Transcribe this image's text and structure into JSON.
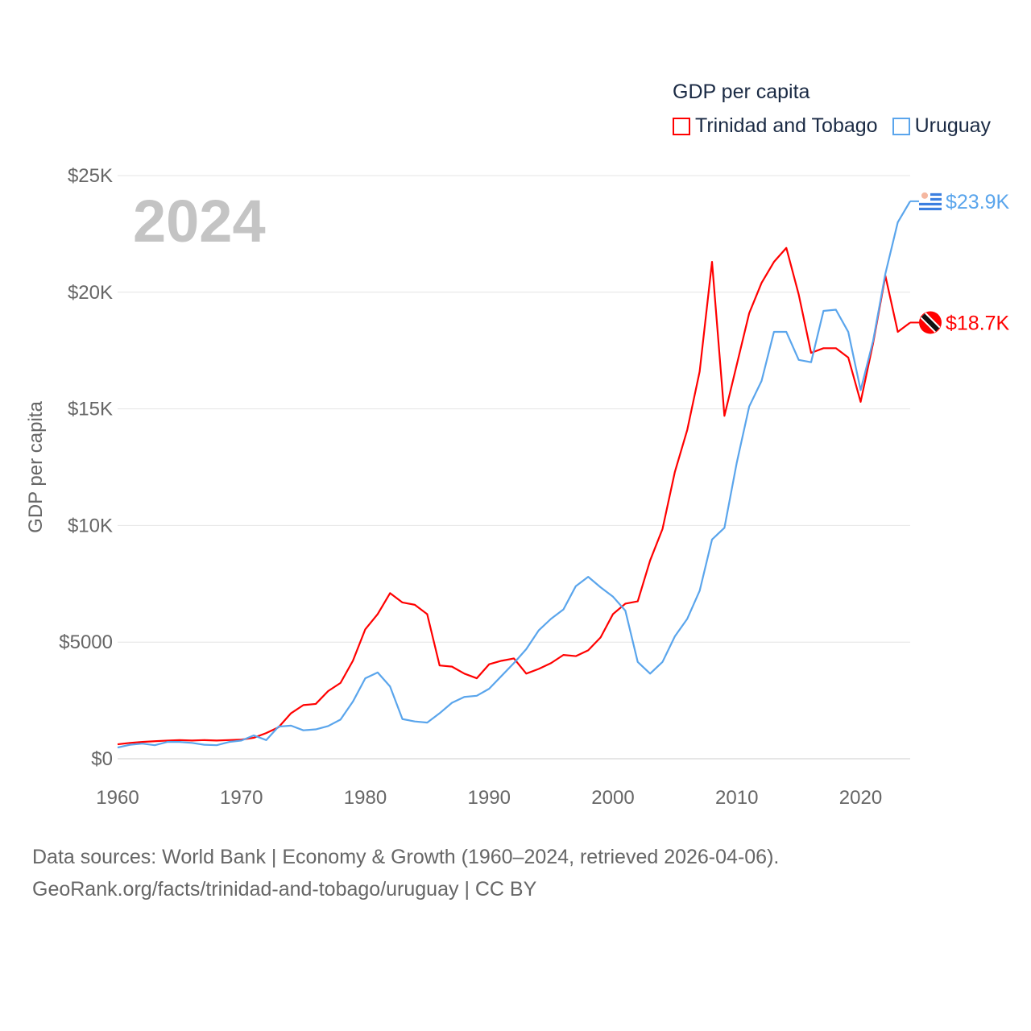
{
  "chart_data": {
    "type": "line",
    "title": "GDP per capita",
    "ylabel": "GDP per capita",
    "xlabel": "",
    "year_label": "2024",
    "xlim": [
      1960,
      2024
    ],
    "ylim": [
      0,
      25000
    ],
    "x_ticks": [
      "1960",
      "1970",
      "1980",
      "1990",
      "2000",
      "2010",
      "2020"
    ],
    "y_ticks": [
      "$0",
      "$5000",
      "$10K",
      "$15K",
      "$20K",
      "$25K"
    ],
    "grid": true,
    "legend_placement": "top-right",
    "x": [
      1960,
      1961,
      1962,
      1963,
      1964,
      1965,
      1966,
      1967,
      1968,
      1969,
      1970,
      1971,
      1972,
      1973,
      1974,
      1975,
      1976,
      1977,
      1978,
      1979,
      1980,
      1981,
      1982,
      1983,
      1984,
      1985,
      1986,
      1987,
      1988,
      1989,
      1990,
      1991,
      1992,
      1993,
      1994,
      1995,
      1996,
      1997,
      1998,
      1999,
      2000,
      2001,
      2002,
      2003,
      2004,
      2005,
      2006,
      2007,
      2008,
      2009,
      2010,
      2011,
      2012,
      2013,
      2014,
      2015,
      2016,
      2017,
      2018,
      2019,
      2020,
      2021,
      2022,
      2023,
      2024
    ],
    "series": [
      {
        "name": "Trinidad and Tobago",
        "color": "#ff0000",
        "end_label": "$18.7K",
        "values": [
          620,
          680,
          720,
          750,
          780,
          800,
          780,
          800,
          780,
          800,
          820,
          900,
          1100,
          1350,
          1950,
          2300,
          2350,
          2900,
          3250,
          4200,
          5550,
          6200,
          7100,
          6700,
          6600,
          6200,
          4000,
          3950,
          3650,
          3450,
          4050,
          4200,
          4300,
          3650,
          3850,
          4100,
          4450,
          4400,
          4650,
          5200,
          6200,
          6650,
          6750,
          8500,
          9850,
          12300,
          14100,
          16600,
          21300,
          14700,
          16900,
          19100,
          20400,
          21300,
          21900,
          19900,
          17400,
          17600,
          17600,
          17200,
          15300,
          17800,
          20700,
          18300,
          18700
        ]
      },
      {
        "name": "Uruguay",
        "color": "#5aa5ec",
        "end_label": "$23.9K",
        "values": [
          480,
          600,
          650,
          580,
          720,
          720,
          680,
          600,
          580,
          720,
          780,
          1000,
          800,
          1380,
          1420,
          1220,
          1260,
          1400,
          1680,
          2450,
          3450,
          3700,
          3100,
          1700,
          1600,
          1550,
          1950,
          2400,
          2650,
          2700,
          3000,
          3550,
          4100,
          4700,
          5500,
          6000,
          6400,
          7400,
          7800,
          7350,
          6950,
          6350,
          4150,
          3650,
          4150,
          5250,
          6000,
          7200,
          9400,
          9900,
          12700,
          15100,
          16200,
          18300,
          18300,
          17100,
          17000,
          19200,
          19250,
          18300,
          15800,
          17900,
          20800,
          23000,
          23900
        ]
      }
    ]
  },
  "footer": {
    "line1": "Data sources: World Bank | Economy & Growth (1960–2024, retrieved 2026-04-06).",
    "line2": "GeoRank.org/facts/trinidad-and-tobago/uruguay | CC BY"
  }
}
